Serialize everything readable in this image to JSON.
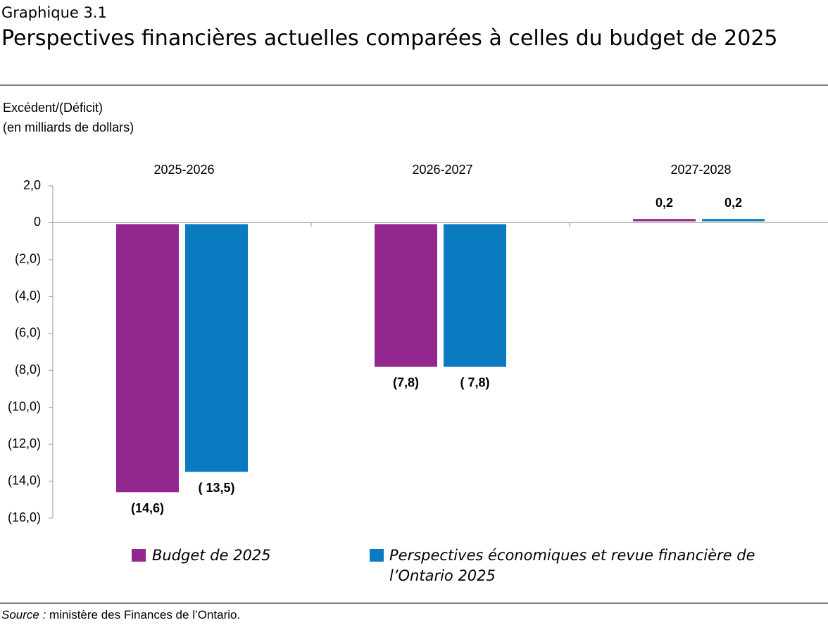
{
  "header": {
    "label": "Graphique 3.1",
    "title": "Perspectives financières actuelles comparées à celles du budget de 2025"
  },
  "chart_data": {
    "type": "bar",
    "y_label_lines": [
      "Excédent/(Déficit)",
      "(en milliards de dollars)"
    ],
    "categories": [
      "2025-2026",
      "2026-2027",
      "2027-2028"
    ],
    "series": [
      {
        "name": "Budget de 2025",
        "color": "#92278f",
        "values": [
          -14.6,
          -7.8,
          0.2
        ],
        "value_labels": [
          "(14,6)",
          "(7,8)",
          "0,2"
        ]
      },
      {
        "name": "Perspectives économiques et revue financière de l’Ontario 2025",
        "color": "#0a7bc1",
        "values": [
          -13.5,
          -7.8,
          0.2
        ],
        "value_labels": [
          "( 13,5)",
          "( 7,8)",
          "0,2"
        ]
      }
    ],
    "ylim": [
      -16,
      2
    ],
    "yticks": [
      {
        "value": 2,
        "label": "2,0"
      },
      0,
      {
        "value": -2,
        "label": "(2,0)"
      },
      {
        "value": -4,
        "label": "(4,0)"
      },
      {
        "value": -6,
        "label": "(6,0)"
      },
      {
        "value": -8,
        "label": "(8,0)"
      },
      {
        "value": -10,
        "label": "(10,0)"
      },
      {
        "value": -12,
        "label": "(12,0)"
      },
      {
        "value": -14,
        "label": "(14,0)"
      },
      {
        "value": -16,
        "label": "(16,0)"
      }
    ],
    "grid": false
  },
  "footer": {
    "source_label": "Source :",
    "source_text": " ministère des Finances de l’Ontario."
  }
}
